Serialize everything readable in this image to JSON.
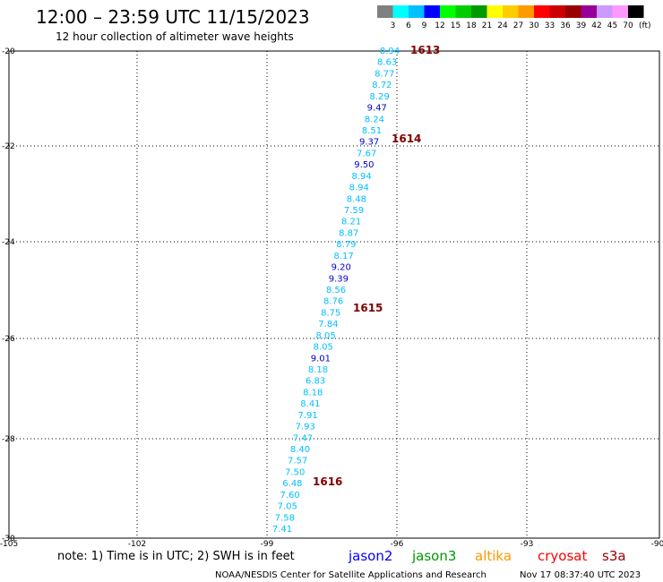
{
  "header": {
    "title": "12:00 – 23:59 UTC 11/15/2023",
    "subtitle": "12 hour collection of altimeter wave heights"
  },
  "legend": {
    "unit_label": "(ft)",
    "colors": [
      "#808080",
      "#00ffff",
      "#00bfff",
      "#0000ff",
      "#00ff00",
      "#00cc00",
      "#009900",
      "#ffff00",
      "#ffcc00",
      "#ff9900",
      "#ff0000",
      "#cc0000",
      "#990000",
      "#990099",
      "#cc99ff",
      "#ff99ff",
      "#000000"
    ],
    "labels": [
      "3",
      "6",
      "9",
      "12",
      "15",
      "18",
      "21",
      "24",
      "27",
      "30",
      "33",
      "36",
      "39",
      "42",
      "45",
      "70"
    ]
  },
  "axes": {
    "lat_labels": [
      "-20",
      "-22",
      "-24",
      "-26",
      "-28",
      "-30"
    ],
    "lon_labels": [
      "-105",
      "-102",
      "-99",
      "-96",
      "-93",
      "-90"
    ]
  },
  "readings": [
    {
      "value": "8.94",
      "color": "#00bfff"
    },
    {
      "value": "8.63",
      "color": "#00bfff"
    },
    {
      "value": "8.77",
      "color": "#00bfff"
    },
    {
      "value": "8.72",
      "color": "#00bfff"
    },
    {
      "value": "8.29",
      "color": "#00bfff"
    },
    {
      "value": "9.47",
      "color": "#0000cc"
    },
    {
      "value": "8.24",
      "color": "#00bfff"
    },
    {
      "value": "8.51",
      "color": "#00bfff"
    },
    {
      "value": "9.37",
      "color": "#0000cc"
    },
    {
      "value": "7.67",
      "color": "#00bfff"
    },
    {
      "value": "9.50",
      "color": "#0000cc"
    },
    {
      "value": "8.94",
      "color": "#00bfff"
    },
    {
      "value": "8.94",
      "color": "#00bfff"
    },
    {
      "value": "8.48",
      "color": "#00bfff"
    },
    {
      "value": "7.59",
      "color": "#00bfff"
    },
    {
      "value": "8.21",
      "color": "#00bfff"
    },
    {
      "value": "8.87",
      "color": "#00bfff"
    },
    {
      "value": "8.79",
      "color": "#00bfff"
    },
    {
      "value": "8.17",
      "color": "#00bfff"
    },
    {
      "value": "9.20",
      "color": "#0000cc"
    },
    {
      "value": "9.39",
      "color": "#0000cc"
    },
    {
      "value": "8.56",
      "color": "#00bfff"
    },
    {
      "value": "8.76",
      "color": "#00bfff"
    },
    {
      "value": "8.75",
      "color": "#00bfff"
    },
    {
      "value": "7.84",
      "color": "#00bfff"
    },
    {
      "value": "8.05",
      "color": "#00bfff"
    },
    {
      "value": "8.05",
      "color": "#00bfff"
    },
    {
      "value": "9.01",
      "color": "#0000cc"
    },
    {
      "value": "8.18",
      "color": "#00bfff"
    },
    {
      "value": "6.83",
      "color": "#00bfff"
    },
    {
      "value": "8.18",
      "color": "#00bfff"
    },
    {
      "value": "8.41",
      "color": "#00bfff"
    },
    {
      "value": "7.91",
      "color": "#00bfff"
    },
    {
      "value": "7.93",
      "color": "#00bfff"
    },
    {
      "value": "7.47",
      "color": "#00bfff"
    },
    {
      "value": "8.40",
      "color": "#00bfff"
    },
    {
      "value": "7.57",
      "color": "#00bfff"
    },
    {
      "value": "7.50",
      "color": "#00bfff"
    },
    {
      "value": "6.48",
      "color": "#00bfff"
    },
    {
      "value": "7.60",
      "color": "#00bfff"
    },
    {
      "value": "7.05",
      "color": "#00bfff"
    },
    {
      "value": "7.58",
      "color": "#00bfff"
    },
    {
      "value": "7.41",
      "color": "#00bfff"
    }
  ],
  "time_labels": [
    {
      "text": "1613",
      "color": "#800000"
    },
    {
      "text": "1614",
      "color": "#800000"
    },
    {
      "text": "1615",
      "color": "#800000"
    },
    {
      "text": "1616",
      "color": "#800000"
    }
  ],
  "footer": {
    "note": "note:  1) Time is in UTC;  2) SWH is in feet",
    "satellites": [
      {
        "name": "jason2",
        "color": "#0000ff"
      },
      {
        "name": "jason3",
        "color": "#009900"
      },
      {
        "name": "altika",
        "color": "#ff9900"
      },
      {
        "name": "cryosat",
        "color": "#ff0000"
      },
      {
        "name": "s3a",
        "color": "#990000"
      }
    ],
    "credit": "NOAA/NESDIS Center for Satellite Applications and Research",
    "timestamp": "Nov 17 08:37:40 UTC 2023"
  }
}
